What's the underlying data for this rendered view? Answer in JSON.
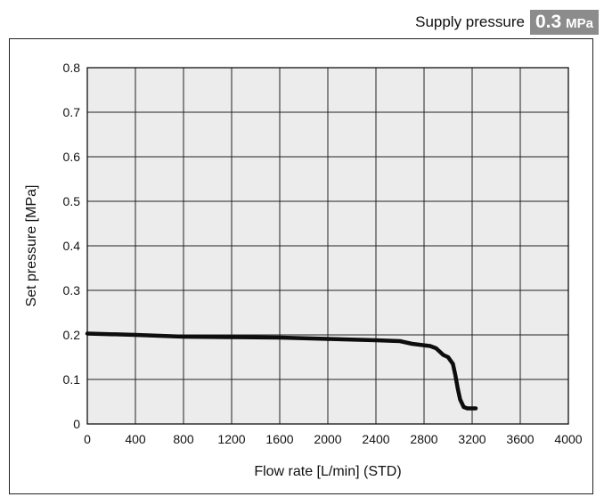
{
  "supply": {
    "label": "Supply pressure",
    "value": "0.3",
    "unit": "MPa"
  },
  "chart_data": {
    "type": "line",
    "xlabel": "Flow rate [L/min] (STD)",
    "ylabel": "Set pressure [MPa]",
    "xlim": [
      0,
      4000
    ],
    "ylim": [
      0,
      0.8
    ],
    "x_ticks": [
      "0",
      "400",
      "800",
      "1200",
      "1600",
      "2000",
      "2400",
      "2800",
      "3200",
      "3600",
      "4000"
    ],
    "y_ticks": [
      "0",
      "0.1",
      "0.2",
      "0.3",
      "0.4",
      "0.5",
      "0.6",
      "0.7",
      "0.8"
    ],
    "grid": true,
    "series": [
      {
        "points": [
          [
            0,
            0.203
          ],
          [
            400,
            0.2
          ],
          [
            800,
            0.196
          ],
          [
            1200,
            0.195
          ],
          [
            1600,
            0.194
          ],
          [
            2000,
            0.191
          ],
          [
            2400,
            0.188
          ],
          [
            2600,
            0.186
          ],
          [
            2700,
            0.18
          ],
          [
            2850,
            0.175
          ],
          [
            2900,
            0.17
          ],
          [
            2960,
            0.155
          ],
          [
            3000,
            0.15
          ],
          [
            3040,
            0.135
          ],
          [
            3060,
            0.11
          ],
          [
            3080,
            0.08
          ],
          [
            3100,
            0.055
          ],
          [
            3130,
            0.038
          ],
          [
            3160,
            0.035
          ],
          [
            3230,
            0.035
          ]
        ]
      }
    ]
  }
}
